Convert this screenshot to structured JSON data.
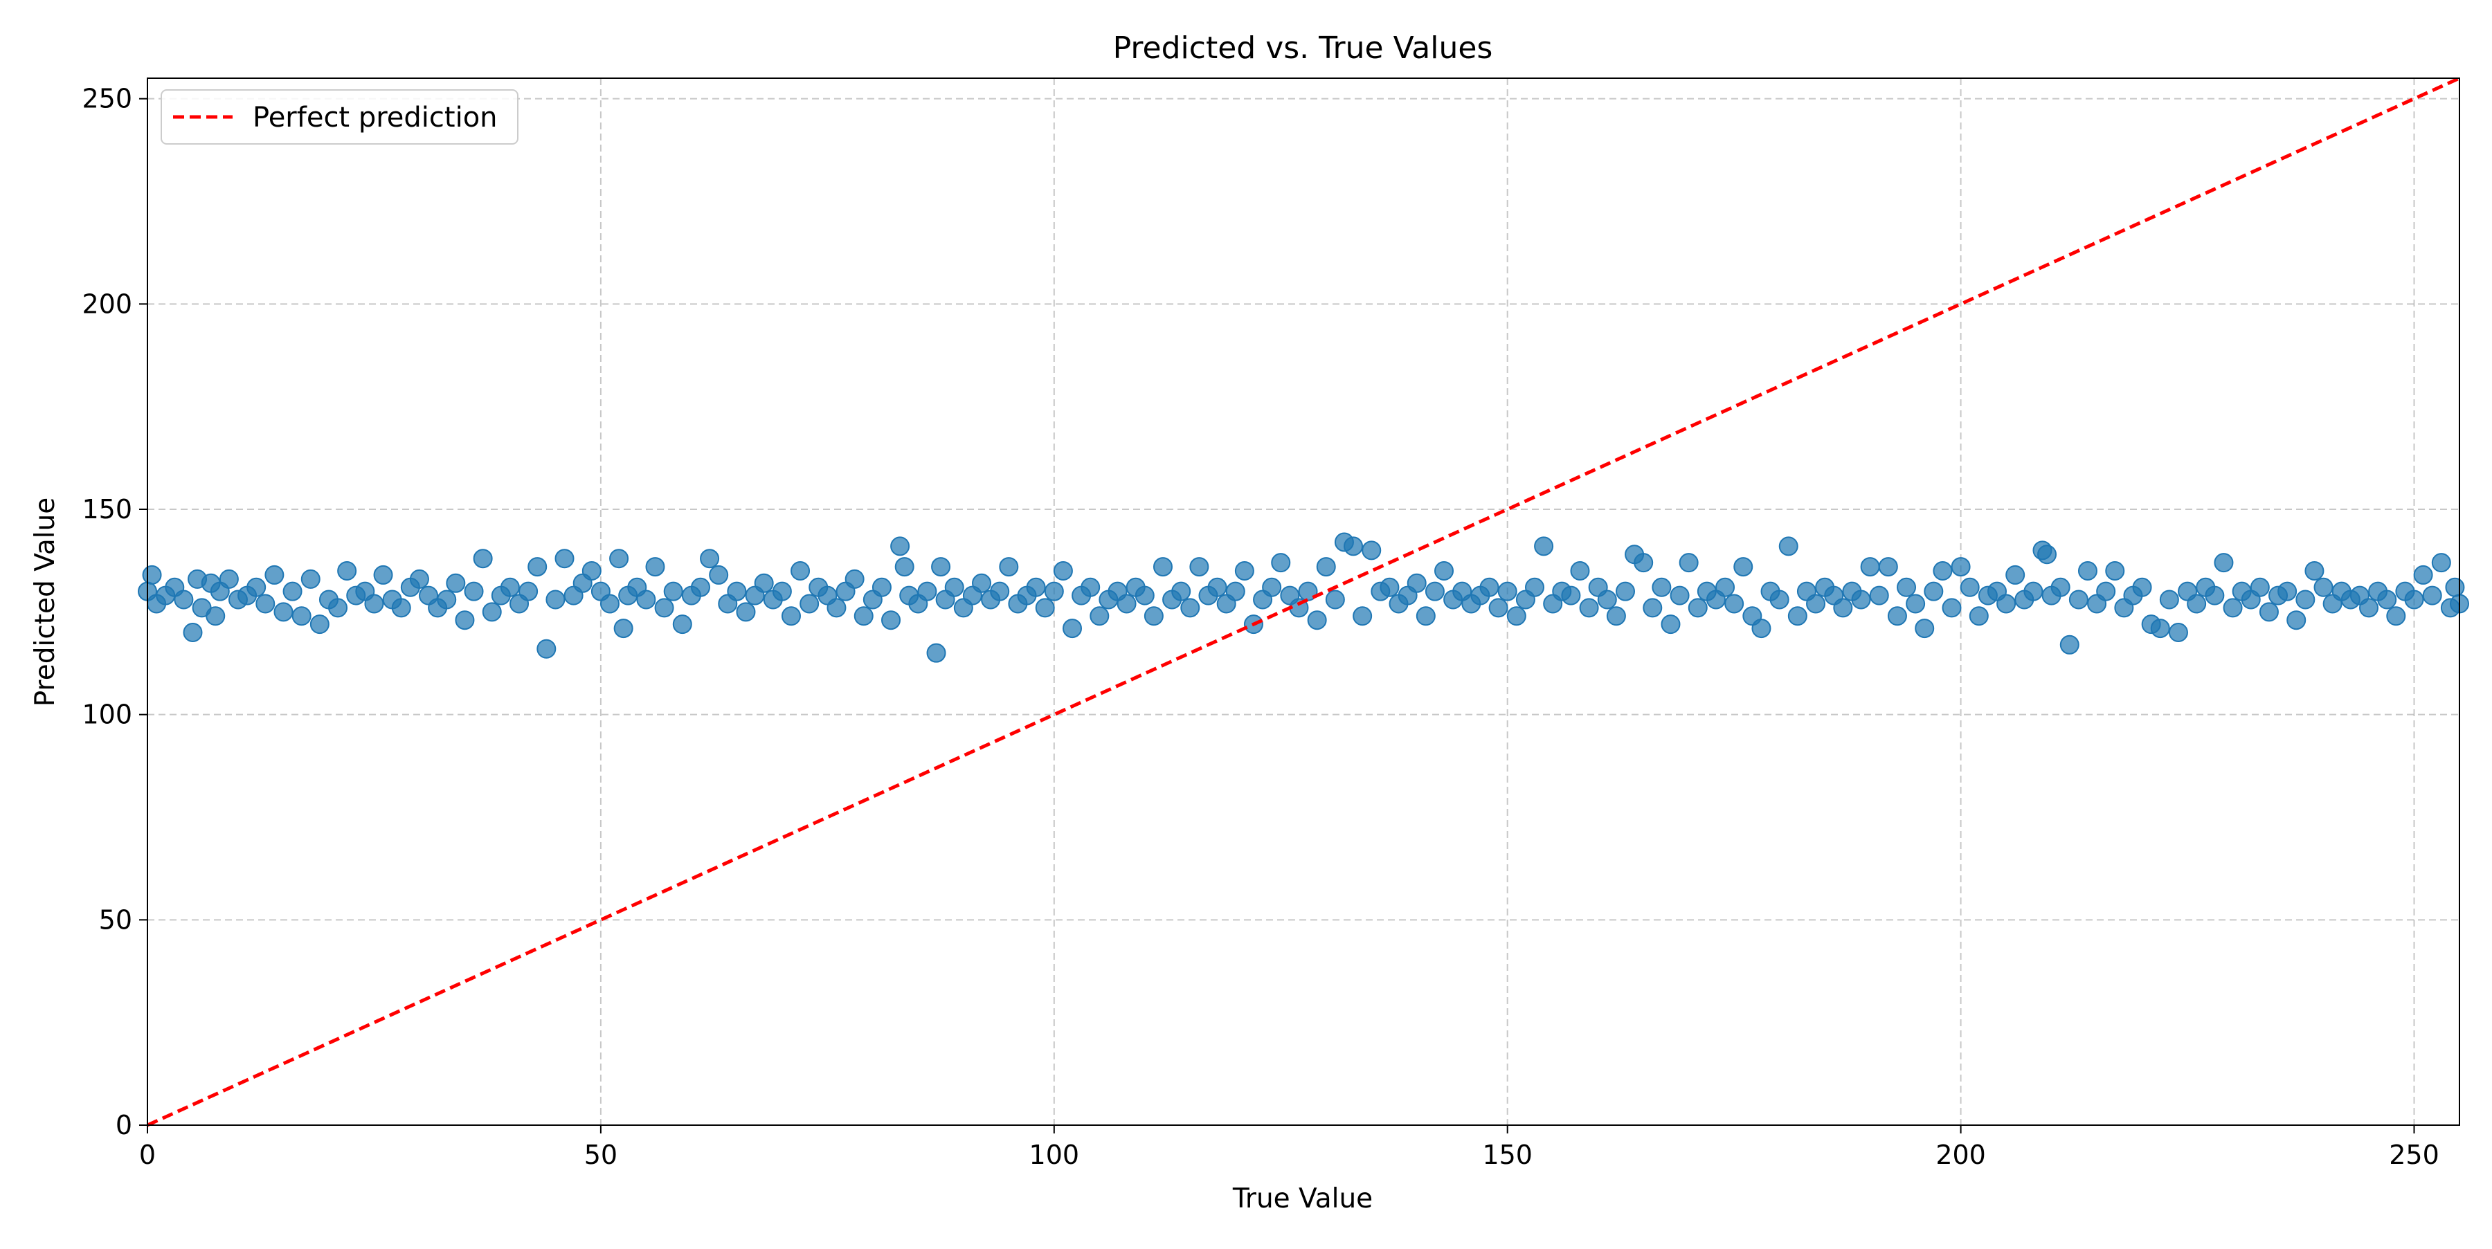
{
  "chart_data": {
    "type": "scatter",
    "title": "Predicted vs. True Values",
    "xlabel": "True Value",
    "ylabel": "Predicted Value",
    "xlim": [
      0,
      255
    ],
    "ylim": [
      0,
      255
    ],
    "x_ticks": [
      0,
      50,
      100,
      150,
      200,
      250
    ],
    "y_ticks": [
      0,
      50,
      100,
      150,
      200,
      250
    ],
    "grid": true,
    "legend": {
      "placement": "top-left",
      "entries": [
        "Perfect prediction"
      ]
    },
    "colors": {
      "points": "#1f77b4",
      "reference_line": "#ff0000",
      "grid": "#b0b0b0"
    },
    "series": [
      {
        "kind": "scatter",
        "description": "Predictions clustered near 128 across all true values",
        "points": [
          [
            0,
            130
          ],
          [
            0.5,
            134
          ],
          [
            1,
            127
          ],
          [
            2,
            129
          ],
          [
            3,
            131
          ],
          [
            4,
            128
          ],
          [
            5,
            120
          ],
          [
            5.5,
            133
          ],
          [
            6,
            126
          ],
          [
            7,
            132
          ],
          [
            7.5,
            124
          ],
          [
            8,
            130
          ],
          [
            9,
            133
          ],
          [
            10,
            128
          ],
          [
            11,
            129
          ],
          [
            12,
            131
          ],
          [
            13,
            127
          ],
          [
            14,
            134
          ],
          [
            15,
            125
          ],
          [
            16,
            130
          ],
          [
            17,
            124
          ],
          [
            18,
            133
          ],
          [
            19,
            122
          ],
          [
            20,
            128
          ],
          [
            21,
            126
          ],
          [
            22,
            135
          ],
          [
            23,
            129
          ],
          [
            24,
            130
          ],
          [
            25,
            127
          ],
          [
            26,
            134
          ],
          [
            27,
            128
          ],
          [
            28,
            126
          ],
          [
            29,
            131
          ],
          [
            30,
            133
          ],
          [
            31,
            129
          ],
          [
            32,
            126
          ],
          [
            33,
            128
          ],
          [
            34,
            132
          ],
          [
            35,
            123
          ],
          [
            36,
            130
          ],
          [
            37,
            138
          ],
          [
            38,
            125
          ],
          [
            39,
            129
          ],
          [
            40,
            131
          ],
          [
            41,
            127
          ],
          [
            42,
            130
          ],
          [
            43,
            136
          ],
          [
            44,
            116
          ],
          [
            45,
            128
          ],
          [
            46,
            138
          ],
          [
            47,
            129
          ],
          [
            48,
            132
          ],
          [
            49,
            135
          ],
          [
            50,
            130
          ],
          [
            51,
            127
          ],
          [
            52,
            138
          ],
          [
            52.5,
            121
          ],
          [
            53,
            129
          ],
          [
            54,
            131
          ],
          [
            55,
            128
          ],
          [
            56,
            136
          ],
          [
            57,
            126
          ],
          [
            58,
            130
          ],
          [
            59,
            122
          ],
          [
            60,
            129
          ],
          [
            61,
            131
          ],
          [
            62,
            138
          ],
          [
            63,
            134
          ],
          [
            64,
            127
          ],
          [
            65,
            130
          ],
          [
            66,
            125
          ],
          [
            67,
            129
          ],
          [
            68,
            132
          ],
          [
            69,
            128
          ],
          [
            70,
            130
          ],
          [
            71,
            124
          ],
          [
            72,
            135
          ],
          [
            73,
            127
          ],
          [
            74,
            131
          ],
          [
            75,
            129
          ],
          [
            76,
            126
          ],
          [
            77,
            130
          ],
          [
            78,
            133
          ],
          [
            79,
            124
          ],
          [
            80,
            128
          ],
          [
            81,
            131
          ],
          [
            82,
            123
          ],
          [
            83,
            141
          ],
          [
            83.5,
            136
          ],
          [
            84,
            129
          ],
          [
            85,
            127
          ],
          [
            86,
            130
          ],
          [
            87,
            115
          ],
          [
            87.5,
            136
          ],
          [
            88,
            128
          ],
          [
            89,
            131
          ],
          [
            90,
            126
          ],
          [
            91,
            129
          ],
          [
            92,
            132
          ],
          [
            93,
            128
          ],
          [
            94,
            130
          ],
          [
            95,
            136
          ],
          [
            96,
            127
          ],
          [
            97,
            129
          ],
          [
            98,
            131
          ],
          [
            99,
            126
          ],
          [
            100,
            130
          ],
          [
            101,
            135
          ],
          [
            102,
            121
          ],
          [
            103,
            129
          ],
          [
            104,
            131
          ],
          [
            105,
            124
          ],
          [
            106,
            128
          ],
          [
            107,
            130
          ],
          [
            108,
            127
          ],
          [
            109,
            131
          ],
          [
            110,
            129
          ],
          [
            111,
            124
          ],
          [
            112,
            136
          ],
          [
            113,
            128
          ],
          [
            114,
            130
          ],
          [
            115,
            126
          ],
          [
            116,
            136
          ],
          [
            117,
            129
          ],
          [
            118,
            131
          ],
          [
            119,
            127
          ],
          [
            120,
            130
          ],
          [
            121,
            135
          ],
          [
            122,
            122
          ],
          [
            123,
            128
          ],
          [
            124,
            131
          ],
          [
            125,
            137
          ],
          [
            126,
            129
          ],
          [
            127,
            126
          ],
          [
            128,
            130
          ],
          [
            129,
            123
          ],
          [
            130,
            136
          ],
          [
            131,
            128
          ],
          [
            132,
            142
          ],
          [
            133,
            141
          ],
          [
            134,
            124
          ],
          [
            135,
            140
          ],
          [
            136,
            130
          ],
          [
            137,
            131
          ],
          [
            138,
            127
          ],
          [
            139,
            129
          ],
          [
            140,
            132
          ],
          [
            141,
            124
          ],
          [
            142,
            130
          ],
          [
            143,
            135
          ],
          [
            144,
            128
          ],
          [
            145,
            130
          ],
          [
            146,
            127
          ],
          [
            147,
            129
          ],
          [
            148,
            131
          ],
          [
            149,
            126
          ],
          [
            150,
            130
          ],
          [
            151,
            124
          ],
          [
            152,
            128
          ],
          [
            153,
            131
          ],
          [
            154,
            141
          ],
          [
            155,
            127
          ],
          [
            156,
            130
          ],
          [
            157,
            129
          ],
          [
            158,
            135
          ],
          [
            159,
            126
          ],
          [
            160,
            131
          ],
          [
            161,
            128
          ],
          [
            162,
            124
          ],
          [
            163,
            130
          ],
          [
            164,
            139
          ],
          [
            165,
            137
          ],
          [
            166,
            126
          ],
          [
            167,
            131
          ],
          [
            168,
            122
          ],
          [
            169,
            129
          ],
          [
            170,
            137
          ],
          [
            171,
            126
          ],
          [
            172,
            130
          ],
          [
            173,
            128
          ],
          [
            174,
            131
          ],
          [
            175,
            127
          ],
          [
            176,
            136
          ],
          [
            177,
            124
          ],
          [
            178,
            121
          ],
          [
            179,
            130
          ],
          [
            180,
            128
          ],
          [
            181,
            141
          ],
          [
            182,
            124
          ],
          [
            183,
            130
          ],
          [
            184,
            127
          ],
          [
            185,
            131
          ],
          [
            186,
            129
          ],
          [
            187,
            126
          ],
          [
            188,
            130
          ],
          [
            189,
            128
          ],
          [
            190,
            136
          ],
          [
            191,
            129
          ],
          [
            192,
            136
          ],
          [
            193,
            124
          ],
          [
            194,
            131
          ],
          [
            195,
            127
          ],
          [
            196,
            121
          ],
          [
            197,
            130
          ],
          [
            198,
            135
          ],
          [
            199,
            126
          ],
          [
            200,
            136
          ],
          [
            201,
            131
          ],
          [
            202,
            124
          ],
          [
            203,
            129
          ],
          [
            204,
            130
          ],
          [
            205,
            127
          ],
          [
            206,
            134
          ],
          [
            207,
            128
          ],
          [
            208,
            130
          ],
          [
            209,
            140
          ],
          [
            209.5,
            139
          ],
          [
            210,
            129
          ],
          [
            211,
            131
          ],
          [
            212,
            117
          ],
          [
            213,
            128
          ],
          [
            214,
            135
          ],
          [
            215,
            127
          ],
          [
            216,
            130
          ],
          [
            217,
            135
          ],
          [
            218,
            126
          ],
          [
            219,
            129
          ],
          [
            220,
            131
          ],
          [
            221,
            122
          ],
          [
            222,
            121
          ],
          [
            223,
            128
          ],
          [
            224,
            120
          ],
          [
            225,
            130
          ],
          [
            226,
            127
          ],
          [
            227,
            131
          ],
          [
            228,
            129
          ],
          [
            229,
            137
          ],
          [
            230,
            126
          ],
          [
            231,
            130
          ],
          [
            232,
            128
          ],
          [
            233,
            131
          ],
          [
            234,
            125
          ],
          [
            235,
            129
          ],
          [
            236,
            130
          ],
          [
            237,
            123
          ],
          [
            238,
            128
          ],
          [
            239,
            135
          ],
          [
            240,
            131
          ],
          [
            241,
            127
          ],
          [
            242,
            130
          ],
          [
            243,
            128
          ],
          [
            244,
            129
          ],
          [
            245,
            126
          ],
          [
            246,
            130
          ],
          [
            247,
            128
          ],
          [
            248,
            124
          ],
          [
            249,
            130
          ],
          [
            250,
            128
          ],
          [
            251,
            134
          ],
          [
            252,
            129
          ],
          [
            253,
            137
          ],
          [
            254,
            126
          ],
          [
            254.5,
            131
          ],
          [
            255,
            127
          ]
        ]
      },
      {
        "kind": "line",
        "name": "Perfect prediction",
        "style": "dashed",
        "points": [
          [
            0,
            0
          ],
          [
            255,
            255
          ]
        ]
      }
    ]
  }
}
